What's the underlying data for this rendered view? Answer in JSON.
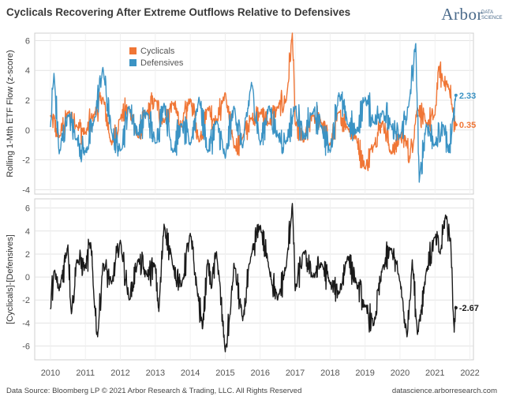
{
  "title": "Cyclicals Recovering After Extreme Outflows Relative to Defensives",
  "logo": {
    "main": "Arbor",
    "sub_line1": "DATA",
    "sub_line2": "SCIENCE"
  },
  "footer": {
    "source": "Data Source: Bloomberg LP © 2021 Arbor Research & Trading, LLC. All Rights Reserved",
    "url": "datascience.arborresearch.com"
  },
  "colors": {
    "cyclicals": "#f07636",
    "defensives": "#3b93c4",
    "spread": "#1a1a1a",
    "grid": "#e3e3e3"
  },
  "chart_data": [
    {
      "type": "line",
      "name": "top_panel",
      "ylabel": "Rolling 1-Mth ETF Flow (z-score)",
      "ylim": [
        -4.3,
        6.5
      ],
      "yticks": [
        "6",
        "4",
        "2",
        "0",
        "-2",
        "-4"
      ],
      "ytick_values": [
        6,
        4,
        2,
        0,
        -2,
        -4
      ],
      "xlim": [
        2009.55,
        2022.1
      ],
      "legend": [
        "Cyclicals",
        "Defensives"
      ],
      "series": [
        {
          "name": "Cyclicals",
          "end_label": "0.35",
          "x": [
            2010.0,
            2010.25,
            2010.5,
            2010.75,
            2011.0,
            2011.25,
            2011.5,
            2011.75,
            2012.0,
            2012.25,
            2012.5,
            2012.75,
            2013.0,
            2013.25,
            2013.5,
            2013.75,
            2014.0,
            2014.25,
            2014.5,
            2014.75,
            2015.0,
            2015.25,
            2015.5,
            2015.75,
            2016.0,
            2016.25,
            2016.5,
            2016.75,
            2016.92,
            2017.0,
            2017.25,
            2017.5,
            2017.75,
            2018.0,
            2018.25,
            2018.5,
            2018.75,
            2019.0,
            2019.25,
            2019.5,
            2019.75,
            2020.0,
            2020.2,
            2020.25,
            2020.5,
            2020.75,
            2021.0,
            2021.1,
            2021.25,
            2021.4,
            2021.5,
            2021.6
          ],
          "values": [
            1.0,
            -0.5,
            1.2,
            0.3,
            -0.2,
            1.0,
            2.2,
            -1.0,
            0.8,
            1.5,
            -0.5,
            1.2,
            2.0,
            0.5,
            1.8,
            0.2,
            2.1,
            -0.8,
            1.5,
            0.6,
            2.5,
            -1.2,
            -0.5,
            0.8,
            1.2,
            0.4,
            1.5,
            2.0,
            6.5,
            0.4,
            -0.8,
            1.0,
            0.5,
            -1.0,
            1.2,
            0.2,
            -0.5,
            -2.6,
            -1.0,
            0.6,
            -1.6,
            -0.4,
            -0.8,
            -2.2,
            1.5,
            0.4,
            1.0,
            4.2,
            3.2,
            2.8,
            1.4,
            0.35
          ]
        },
        {
          "name": "Defensives",
          "end_label": "2.33",
          "x": [
            2010.0,
            2010.1,
            2010.25,
            2010.5,
            2010.75,
            2011.0,
            2011.25,
            2011.5,
            2011.75,
            2012.0,
            2012.25,
            2012.5,
            2012.75,
            2013.0,
            2013.25,
            2013.5,
            2013.75,
            2014.0,
            2014.25,
            2014.5,
            2014.75,
            2015.0,
            2015.25,
            2015.5,
            2015.75,
            2016.0,
            2016.25,
            2016.5,
            2016.75,
            2017.0,
            2017.25,
            2017.5,
            2017.75,
            2018.0,
            2018.25,
            2018.5,
            2018.75,
            2019.0,
            2019.25,
            2019.5,
            2019.75,
            2020.0,
            2020.25,
            2020.45,
            2020.55,
            2020.75,
            2021.0,
            2021.25,
            2021.4,
            2021.5,
            2021.6
          ],
          "values": [
            0.2,
            3.8,
            -1.6,
            1.0,
            -0.6,
            -1.5,
            0.6,
            4.2,
            -0.2,
            -1.4,
            1.6,
            -0.3,
            1.2,
            -0.9,
            1.8,
            -1.5,
            0.4,
            -1.0,
            2.2,
            -1.5,
            0.6,
            -1.9,
            1.6,
            -1.2,
            3.2,
            -1.0,
            1.6,
            -0.4,
            -0.8,
            1.6,
            -0.6,
            1.2,
            0.3,
            -1.5,
            2.5,
            0.4,
            -0.2,
            2.2,
            0.5,
            1.3,
            0.2,
            -0.5,
            1.6,
            5.8,
            -3.5,
            0.4,
            -1.0,
            0.3,
            -1.5,
            0.6,
            2.33
          ]
        }
      ]
    },
    {
      "type": "line",
      "name": "bottom_panel",
      "ylabel": "[Cyclicals]-[Defensives]",
      "ylim": [
        -7.2,
        6.8
      ],
      "yticks": [
        "6",
        "4",
        "2",
        "0",
        "-2",
        "-4",
        "-6"
      ],
      "ytick_values": [
        6,
        4,
        2,
        0,
        -2,
        -4,
        -6
      ],
      "xlim": [
        2009.55,
        2022.1
      ],
      "xticks": [
        "2010",
        "2011",
        "2012",
        "2013",
        "2014",
        "2015",
        "2016",
        "2017",
        "2018",
        "2019",
        "2020",
        "2021",
        "2022"
      ],
      "xtick_values": [
        2010,
        2011,
        2012,
        2013,
        2014,
        2015,
        2016,
        2017,
        2018,
        2019,
        2020,
        2021,
        2022
      ],
      "series": [
        {
          "name": "Cyclicals - Defensives",
          "end_label": "-2.67",
          "x": [
            2010.0,
            2010.1,
            2010.25,
            2010.5,
            2010.6,
            2010.75,
            2011.0,
            2011.15,
            2011.25,
            2011.35,
            2011.5,
            2011.75,
            2012.0,
            2012.25,
            2012.5,
            2012.75,
            2013.0,
            2013.1,
            2013.25,
            2013.5,
            2013.75,
            2014.0,
            2014.2,
            2014.35,
            2014.5,
            2014.6,
            2014.75,
            2015.0,
            2015.15,
            2015.25,
            2015.5,
            2015.75,
            2016.0,
            2016.25,
            2016.5,
            2016.75,
            2016.92,
            2017.0,
            2017.25,
            2017.5,
            2017.75,
            2018.0,
            2018.25,
            2018.5,
            2018.75,
            2019.0,
            2019.25,
            2019.5,
            2019.75,
            2020.0,
            2020.2,
            2020.35,
            2020.5,
            2020.75,
            2021.0,
            2021.15,
            2021.3,
            2021.45,
            2021.55,
            2021.6
          ],
          "values": [
            -2.8,
            0.5,
            -1.2,
            2.8,
            -3.2,
            1.5,
            0.8,
            3.0,
            -2.0,
            -5.2,
            1.2,
            -0.6,
            3.2,
            -2.0,
            1.5,
            0.2,
            1.0,
            -3.0,
            4.6,
            1.0,
            -0.8,
            3.8,
            -1.2,
            -4.5,
            1.5,
            -1.0,
            2.2,
            -6.5,
            -3.0,
            1.2,
            -3.8,
            2.0,
            4.5,
            0.8,
            -2.0,
            1.0,
            6.4,
            -1.2,
            2.2,
            0.0,
            1.2,
            -0.6,
            -1.5,
            1.8,
            -0.5,
            -2.6,
            -4.2,
            0.8,
            2.5,
            -0.4,
            -5.2,
            1.5,
            -5.0,
            0.5,
            3.5,
            2.0,
            5.4,
            3.2,
            -4.8,
            -2.67
          ]
        }
      ]
    }
  ]
}
